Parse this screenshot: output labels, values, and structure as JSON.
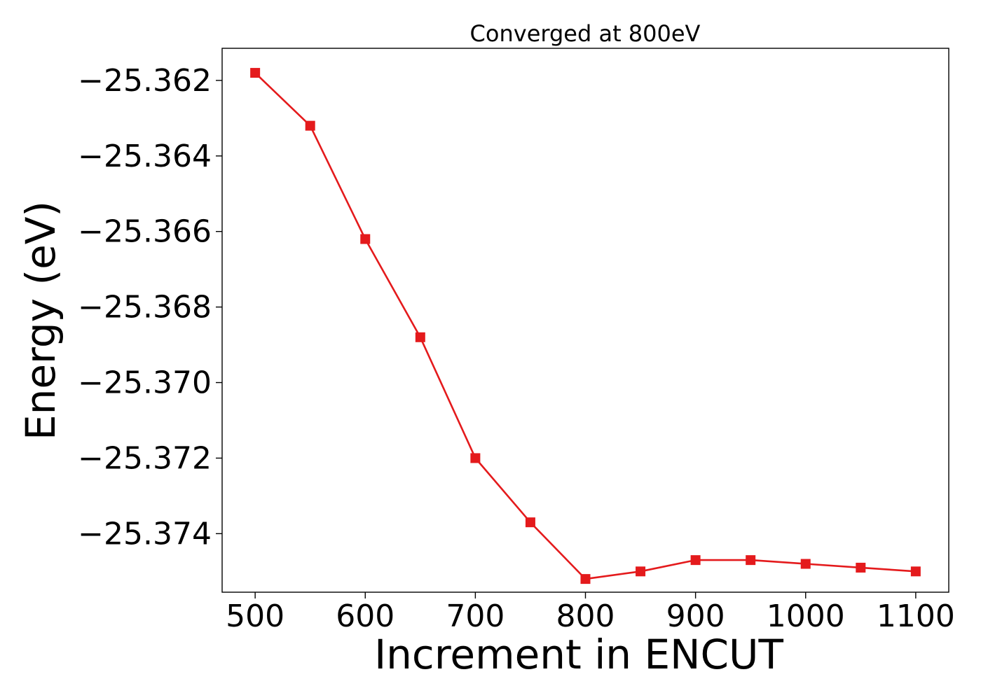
{
  "chart_data": {
    "type": "line",
    "title": "Converged at 800eV",
    "xlabel": "Increment in ENCUT",
    "ylabel": "Energy (eV)",
    "x": [
      500,
      550,
      600,
      650,
      700,
      750,
      800,
      850,
      900,
      950,
      1000,
      1050,
      1100
    ],
    "series": [
      {
        "values": [
          -25.3618,
          -25.3632,
          -25.3662,
          -25.3688,
          -25.372,
          -25.3737,
          -25.3752,
          -25.375,
          -25.3747,
          -25.3747,
          -25.3748,
          -25.3749,
          -25.375
        ]
      }
    ],
    "xticks": [
      500,
      600,
      700,
      800,
      900,
      1000,
      1100
    ],
    "xtick_labels": [
      "500",
      "600",
      "700",
      "800",
      "900",
      "1000",
      "1100"
    ],
    "yticks": [
      -25.362,
      -25.364,
      -25.366,
      -25.368,
      -25.37,
      -25.372,
      -25.374
    ],
    "ytick_labels": [
      "−25.362",
      "−25.364",
      "−25.366",
      "−25.368",
      "−25.370",
      "−25.372",
      "−25.374"
    ],
    "xlim": [
      470,
      1130
    ],
    "ylim": [
      -25.37555,
      -25.36115
    ],
    "grid": false,
    "marker": "square",
    "line_color": "#e41a1c"
  }
}
